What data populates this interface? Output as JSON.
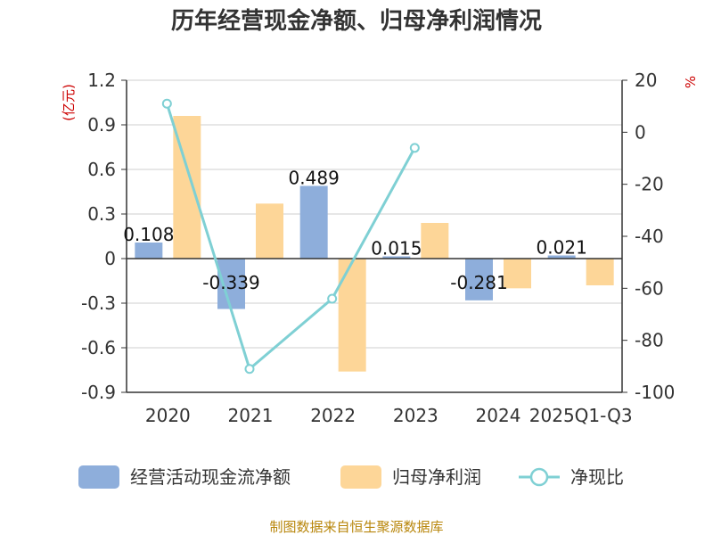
{
  "chart_data": {
    "type": "bar",
    "title": "历年经营现金净额、归母净利润情况",
    "categories": [
      "2020",
      "2021",
      "2022",
      "2023",
      "2024",
      "2025Q1-Q3"
    ],
    "series": [
      {
        "name": "经营活动现金流净额",
        "kind": "bar",
        "axis": "left",
        "color": "#8eaedb",
        "values": [
          0.108,
          -0.339,
          0.489,
          0.015,
          -0.281,
          0.021
        ],
        "labels": [
          "0.108",
          "-0.339",
          "0.489",
          "0.015",
          "-0.281",
          "0.021"
        ]
      },
      {
        "name": "归母净利润",
        "kind": "bar",
        "axis": "left",
        "color": "#fdd698",
        "values": [
          0.96,
          0.37,
          -0.76,
          0.24,
          -0.2,
          -0.18
        ]
      },
      {
        "name": "净现比",
        "kind": "line",
        "axis": "right",
        "color": "#7fd0d4",
        "values": [
          11,
          -91,
          -64,
          -6,
          null,
          null
        ]
      }
    ],
    "left_axis": {
      "unit": "(亿元)",
      "min": -0.9,
      "max": 1.2,
      "ticks": [
        1.2,
        0.9,
        0.6,
        0.3,
        0,
        -0.3,
        -0.6,
        -0.9
      ],
      "tick_labels": [
        "1.2",
        "0.9",
        "0.6",
        "0.3",
        "0",
        "-0.3",
        "-0.6",
        "-0.9"
      ]
    },
    "right_axis": {
      "unit": "%",
      "min": -100,
      "max": 20,
      "ticks": [
        20,
        0,
        -20,
        -40,
        -60,
        -80,
        -100
      ],
      "tick_labels": [
        "20",
        "0",
        "-20",
        "-40",
        "-60",
        "-80",
        "-100"
      ]
    },
    "legend": {
      "position": "bottom"
    },
    "source": "制图数据来自恒生聚源数据库"
  }
}
